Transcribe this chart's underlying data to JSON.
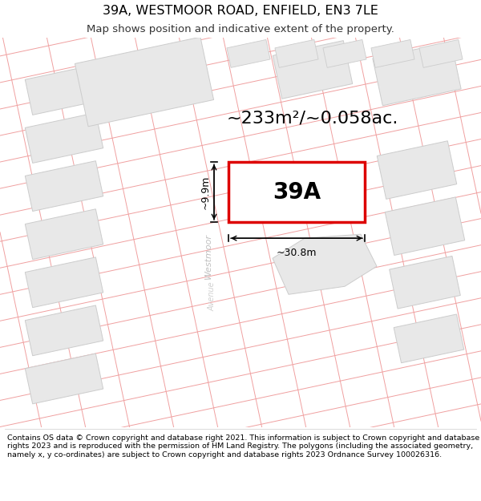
{
  "title": "39A, WESTMOOR ROAD, ENFIELD, EN3 7LE",
  "subtitle": "Map shows position and indicative extent of the property.",
  "footer": "Contains OS data © Crown copyright and database right 2021. This information is subject to Crown copyright and database rights 2023 and is reproduced with the permission of HM Land Registry. The polygons (including the associated geometry, namely x, y co-ordinates) are subject to Crown copyright and database rights 2023 Ordnance Survey 100026316.",
  "area_label": "~233m²/~0.058ac.",
  "property_label": "39A",
  "dim_width": "~30.8m",
  "dim_height": "~9.9m",
  "road_label": "Westmoor",
  "road_label2": "Avenue",
  "bg_color": "#ffffff",
  "map_bg": "#ffffff",
  "property_fill": "#ffffff",
  "property_border": "#dd0000",
  "block_fill": "#e8e8e8",
  "block_border": "#cccccc",
  "road_line_color": "#f0a0a0",
  "dim_color": "#000000",
  "text_color": "#000000",
  "road_text_color": "#c0c0c0"
}
